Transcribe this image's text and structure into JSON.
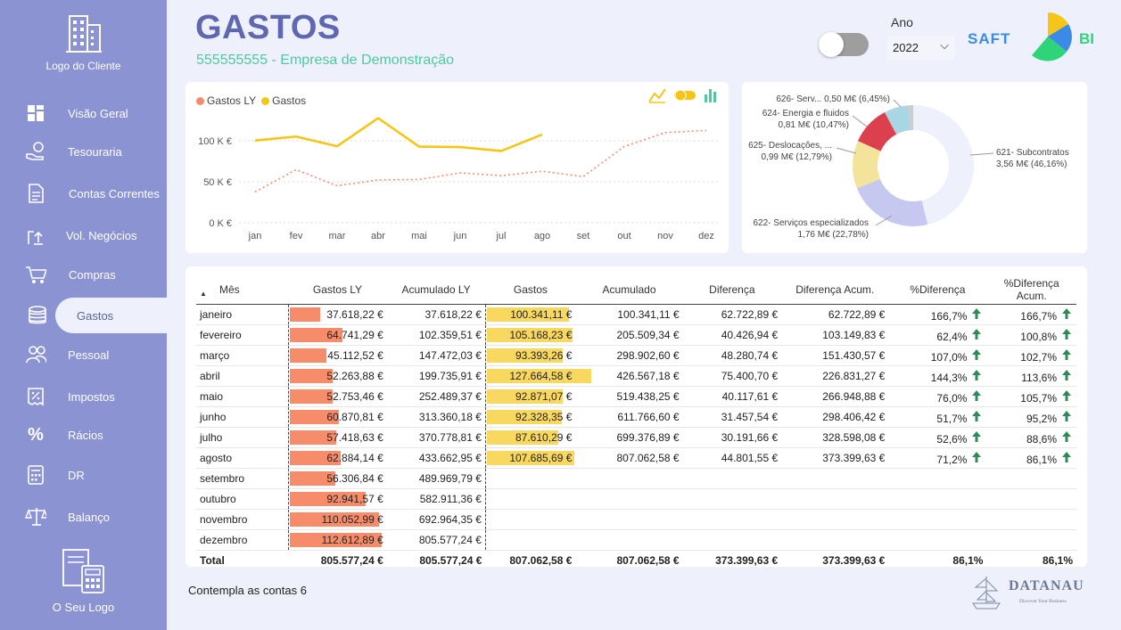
{
  "sidebar": {
    "client_logo_label": "Logo do Cliente",
    "own_logo_label": "O Seu Logo",
    "items": [
      {
        "label": "Visão Geral",
        "icon": "dashboard-icon"
      },
      {
        "label": "Tesouraria",
        "icon": "hand-coin-icon"
      },
      {
        "label": "Contas Correntes",
        "icon": "document-icon"
      },
      {
        "label": "Vol. Negócios",
        "icon": "upload-icon"
      },
      {
        "label": "Compras",
        "icon": "cart-icon"
      },
      {
        "label": "Gastos",
        "icon": "coins-icon",
        "active": true
      },
      {
        "label": "Pessoal",
        "icon": "people-icon"
      },
      {
        "label": "Impostos",
        "icon": "tax-icon"
      },
      {
        "label": "Rácios",
        "icon": "percent-icon"
      },
      {
        "label": "DR",
        "icon": "calculator-icon"
      },
      {
        "label": "Balanço",
        "icon": "scale-icon"
      }
    ]
  },
  "header": {
    "title": "GASTOS",
    "subtitle": "555555555 - Empresa de Demonstração",
    "year_label": "Ano",
    "year_value": "2022",
    "brand_saft": "SAFT",
    "brand_bi": "BI"
  },
  "colors": {
    "sidebar": "#8b93d3",
    "gastos_ly": "#f78c6b",
    "gastos": "#f5c518",
    "accent_green": "#4fc8a3",
    "arrow_green": "#2e8b57"
  },
  "chart_data": [
    {
      "type": "line",
      "legend": [
        "Gastos LY",
        "Gastos"
      ],
      "x": [
        "jan",
        "fev",
        "mar",
        "abr",
        "mai",
        "jun",
        "jul",
        "ago",
        "set",
        "out",
        "nov",
        "dez"
      ],
      "y_ticks": [
        "0 K €",
        "50 K €",
        "100 K €"
      ],
      "ylim": [
        0,
        125000
      ],
      "grid": true,
      "series": [
        {
          "name": "Gastos LY",
          "style": "dotted",
          "values": [
            37618.22,
            64741.29,
            45112.52,
            52263.88,
            52753.46,
            60870.81,
            57418.63,
            62884.14,
            56306.84,
            92941.57,
            110052.99,
            112612.89
          ]
        },
        {
          "name": "Gastos",
          "style": "solid",
          "values": [
            100341.11,
            105168.23,
            93393.26,
            127664.58,
            92871.07,
            92328.35,
            87610.29,
            107685.69,
            null,
            null,
            null,
            null
          ]
        }
      ]
    },
    {
      "type": "pie",
      "slices": [
        {
          "label": "621- Subcontratos",
          "value_label": "3,56 M€ (46,16%)",
          "value": 46.16,
          "color": "#eef1fb"
        },
        {
          "label": "622- Serviços especializados",
          "value_label": "1,76 M€ (22,78%)",
          "value": 22.78,
          "color": "#c6c8ef"
        },
        {
          "label": "625- Deslocações, ...",
          "value_label": "0,99 M€ (12,79%)",
          "value": 12.79,
          "color": "#f3e39b"
        },
        {
          "label": "624- Energia e fluidos",
          "value_label": "0,81 M€ (10,47%)",
          "value": 10.47,
          "color": "#dc3f4d"
        },
        {
          "label": "626- Serv... 0,50 M€ (6,45%)",
          "value_label": "",
          "value": 6.45,
          "color": "#a9d6e5"
        },
        {
          "label": "",
          "value_label": "",
          "value": 1.35,
          "color": "#cccccc"
        }
      ]
    }
  ],
  "table": {
    "columns": [
      "Mês",
      "Gastos LY",
      "Acumulado LY",
      "Gastos",
      "Acumulado",
      "Diferença",
      "Diferença Acum.",
      "%Diferença",
      "%Diferença Acum."
    ],
    "bar_max": 112612.89,
    "rows": [
      {
        "mes": "janeiro",
        "ly": "37.618,22 €",
        "ly_v": 37618.22,
        "acly": "37.618,22 €",
        "g": "100.341,11 €",
        "g_v": 100341.11,
        "ac": "100.341,11 €",
        "dif": "62.722,89 €",
        "difac": "62.722,89 €",
        "pd": "166,7%",
        "pda": "166,7%"
      },
      {
        "mes": "fevereiro",
        "ly": "64.741,29 €",
        "ly_v": 64741.29,
        "acly": "102.359,51 €",
        "g": "105.168,23 €",
        "g_v": 105168.23,
        "ac": "205.509,34 €",
        "dif": "40.426,94 €",
        "difac": "103.149,83 €",
        "pd": "62,4%",
        "pda": "100,8%"
      },
      {
        "mes": "março",
        "ly": "45.112,52 €",
        "ly_v": 45112.52,
        "acly": "147.472,03 €",
        "g": "93.393,26 €",
        "g_v": 93393.26,
        "ac": "298.902,60 €",
        "dif": "48.280,74 €",
        "difac": "151.430,57 €",
        "pd": "107,0%",
        "pda": "102,7%"
      },
      {
        "mes": "abril",
        "ly": "52.263,88 €",
        "ly_v": 52263.88,
        "acly": "199.735,91 €",
        "g": "127.664,58 €",
        "g_v": 127664.58,
        "ac": "426.567,18 €",
        "dif": "75.400,70 €",
        "difac": "226.831,27 €",
        "pd": "144,3%",
        "pda": "113,6%"
      },
      {
        "mes": "maio",
        "ly": "52.753,46 €",
        "ly_v": 52753.46,
        "acly": "252.489,37 €",
        "g": "92.871,07 €",
        "g_v": 92871.07,
        "ac": "519.438,25 €",
        "dif": "40.117,61 €",
        "difac": "266.948,88 €",
        "pd": "76,0%",
        "pda": "105,7%"
      },
      {
        "mes": "junho",
        "ly": "60.870,81 €",
        "ly_v": 60870.81,
        "acly": "313.360,18 €",
        "g": "92.328,35 €",
        "g_v": 92328.35,
        "ac": "611.766,60 €",
        "dif": "31.457,54 €",
        "difac": "298.406,42 €",
        "pd": "51,7%",
        "pda": "95,2%"
      },
      {
        "mes": "julho",
        "ly": "57.418,63 €",
        "ly_v": 57418.63,
        "acly": "370.778,81 €",
        "g": "87.610,29 €",
        "g_v": 87610.29,
        "ac": "699.376,89 €",
        "dif": "30.191,66 €",
        "difac": "328.598,08 €",
        "pd": "52,6%",
        "pda": "88,6%"
      },
      {
        "mes": "agosto",
        "ly": "62.884,14 €",
        "ly_v": 62884.14,
        "acly": "433.662,95 €",
        "g": "107.685,69 €",
        "g_v": 107685.69,
        "ac": "807.062,58 €",
        "dif": "44.801,55 €",
        "difac": "373.399,63 €",
        "pd": "71,2%",
        "pda": "86,1%"
      },
      {
        "mes": "setembro",
        "ly": "56.306,84 €",
        "ly_v": 56306.84,
        "acly": "489.969,79 €",
        "g": "",
        "g_v": null,
        "ac": "",
        "dif": "",
        "difac": "",
        "pd": "",
        "pda": ""
      },
      {
        "mes": "outubro",
        "ly": "92.941,57 €",
        "ly_v": 92941.57,
        "acly": "582.911,36 €",
        "g": "",
        "g_v": null,
        "ac": "",
        "dif": "",
        "difac": "",
        "pd": "",
        "pda": ""
      },
      {
        "mes": "novembro",
        "ly": "110.052,99 €",
        "ly_v": 110052.99,
        "acly": "692.964,35 €",
        "g": "",
        "g_v": null,
        "ac": "",
        "dif": "",
        "difac": "",
        "pd": "",
        "pda": ""
      },
      {
        "mes": "dezembro",
        "ly": "112.612,89 €",
        "ly_v": 112612.89,
        "acly": "805.577,24 €",
        "g": "",
        "g_v": null,
        "ac": "",
        "dif": "",
        "difac": "",
        "pd": "",
        "pda": ""
      }
    ],
    "total": {
      "mes": "Total",
      "ly": "805.577,24 €",
      "acly": "805.577,24 €",
      "g": "807.062,58 €",
      "ac": "807.062,58 €",
      "dif": "373.399,63 €",
      "difac": "373.399,63 €",
      "pd": "86,1%",
      "pda": "86,1%"
    }
  },
  "footer": {
    "note": "Contempla as contas 6",
    "brand": "DATANAU",
    "tagline": "Discover Your Business"
  }
}
